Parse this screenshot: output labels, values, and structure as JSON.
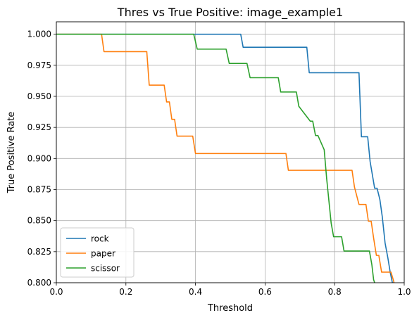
{
  "chart_data": {
    "type": "line",
    "title": "Thres vs True Positive: image_example1",
    "xlabel": "Threshold",
    "ylabel": "True Positive Rate",
    "xlim": [
      0.0,
      1.0
    ],
    "ylim": [
      0.8,
      1.01
    ],
    "grid": true,
    "legend_position": "lower-left",
    "xticks": [
      0.0,
      0.2,
      0.4,
      0.6,
      0.8,
      1.0
    ],
    "xtick_labels": [
      "0.0",
      "0.2",
      "0.4",
      "0.6",
      "0.8",
      "1.0"
    ],
    "yticks": [
      0.8,
      0.825,
      0.85,
      0.875,
      0.9,
      0.925,
      0.95,
      0.975,
      1.0
    ],
    "ytick_labels": [
      "0.800",
      "0.825",
      "0.850",
      "0.875",
      "0.900",
      "0.925",
      "0.950",
      "0.975",
      "1.000"
    ],
    "series": [
      {
        "name": "rock",
        "color": "#1f77b4",
        "x": [
          0.0,
          0.53,
          0.537,
          0.72,
          0.727,
          0.87,
          0.877,
          0.895,
          0.902,
          0.915,
          0.922,
          0.93,
          0.937,
          0.945,
          0.953,
          0.96,
          0.966,
          0.972
        ],
        "y": [
          1.0,
          1.0,
          0.9895,
          0.9895,
          0.969,
          0.969,
          0.9175,
          0.9175,
          0.8975,
          0.876,
          0.876,
          0.867,
          0.853,
          0.832,
          0.82,
          0.808,
          0.8,
          0.8
        ]
      },
      {
        "name": "paper",
        "color": "#ff7f0e",
        "x": [
          0.0,
          0.13,
          0.137,
          0.26,
          0.267,
          0.31,
          0.317,
          0.325,
          0.332,
          0.34,
          0.347,
          0.392,
          0.4,
          0.66,
          0.667,
          0.85,
          0.857,
          0.87,
          0.877,
          0.89,
          0.897,
          0.905,
          0.912,
          0.92,
          0.927,
          0.935,
          0.942,
          0.955,
          0.962,
          0.97,
          0.973
        ],
        "y": [
          1.0,
          1.0,
          0.986,
          0.986,
          0.959,
          0.959,
          0.9455,
          0.9455,
          0.9315,
          0.9315,
          0.918,
          0.918,
          0.904,
          0.904,
          0.8905,
          0.8905,
          0.877,
          0.863,
          0.863,
          0.863,
          0.8495,
          0.8495,
          0.836,
          0.822,
          0.822,
          0.8085,
          0.8085,
          0.8085,
          0.8085,
          0.801,
          0.795
        ]
      },
      {
        "name": "scissor",
        "color": "#2ca02c",
        "x": [
          0.0,
          0.395,
          0.405,
          0.488,
          0.497,
          0.548,
          0.557,
          0.638,
          0.645,
          0.69,
          0.697,
          0.73,
          0.737,
          0.745,
          0.752,
          0.77,
          0.777,
          0.79,
          0.797,
          0.82,
          0.827,
          0.88,
          0.887,
          0.9,
          0.907,
          0.912,
          0.915,
          0.918
        ],
        "y": [
          1.0,
          1.0,
          0.988,
          0.988,
          0.9765,
          0.9765,
          0.965,
          0.965,
          0.9535,
          0.9535,
          0.942,
          0.93,
          0.93,
          0.9185,
          0.9185,
          0.907,
          0.884,
          0.848,
          0.837,
          0.837,
          0.8255,
          0.8255,
          0.8255,
          0.8255,
          0.8145,
          0.8025,
          0.8,
          0.795
        ]
      }
    ]
  }
}
